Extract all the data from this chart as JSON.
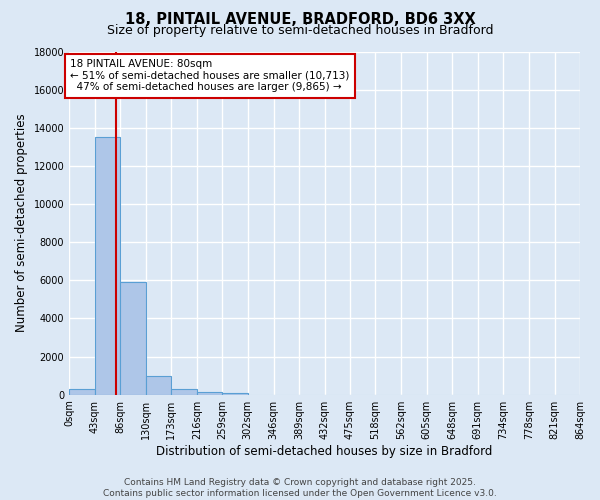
{
  "title": "18, PINTAIL AVENUE, BRADFORD, BD6 3XX",
  "subtitle": "Size of property relative to semi-detached houses in Bradford",
  "xlabel": "Distribution of semi-detached houses by size in Bradford",
  "ylabel": "Number of semi-detached properties",
  "bin_labels": [
    "0sqm",
    "43sqm",
    "86sqm",
    "130sqm",
    "173sqm",
    "216sqm",
    "259sqm",
    "302sqm",
    "346sqm",
    "389sqm",
    "432sqm",
    "475sqm",
    "518sqm",
    "562sqm",
    "605sqm",
    "648sqm",
    "691sqm",
    "734sqm",
    "778sqm",
    "821sqm",
    "864sqm"
  ],
  "bin_edges": [
    0,
    43,
    86,
    130,
    173,
    216,
    259,
    302,
    346,
    389,
    432,
    475,
    518,
    562,
    605,
    648,
    691,
    734,
    778,
    821,
    864
  ],
  "bar_values": [
    300,
    13500,
    5900,
    1000,
    300,
    150,
    80,
    0,
    0,
    0,
    0,
    0,
    0,
    0,
    0,
    0,
    0,
    0,
    0,
    0
  ],
  "bar_color": "#aec6e8",
  "bar_edgecolor": "#5a9fd4",
  "property_size": 80,
  "red_line_color": "#cc0000",
  "annotation_line1": "18 PINTAIL AVENUE: 80sqm",
  "annotation_line2": "← 51% of semi-detached houses are smaller (10,713)",
  "annotation_line3": "  47% of semi-detached houses are larger (9,865) →",
  "annotation_box_color": "#ffffff",
  "annotation_box_edgecolor": "#cc0000",
  "ylim": [
    0,
    18000
  ],
  "yticks": [
    0,
    2000,
    4000,
    6000,
    8000,
    10000,
    12000,
    14000,
    16000,
    18000
  ],
  "background_color": "#dce8f5",
  "grid_color": "#ffffff",
  "footer_text": "Contains HM Land Registry data © Crown copyright and database right 2025.\nContains public sector information licensed under the Open Government Licence v3.0.",
  "title_fontsize": 10.5,
  "subtitle_fontsize": 9,
  "axis_label_fontsize": 8.5,
  "tick_fontsize": 7,
  "annotation_fontsize": 7.5,
  "footer_fontsize": 6.5
}
